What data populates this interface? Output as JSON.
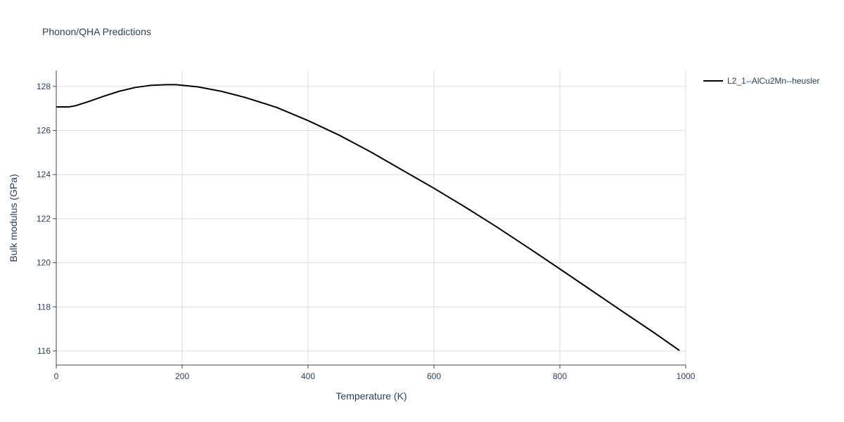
{
  "chart_data": {
    "type": "line",
    "title": "Phonon/QHA Predictions",
    "x_label": "Temperature (K)",
    "y_label": "Bulk modulus (GPa)",
    "x": [
      0,
      20,
      30,
      50,
      75,
      100,
      125,
      150,
      175,
      190,
      225,
      262,
      300,
      350,
      400,
      450,
      500,
      550,
      600,
      650,
      700,
      750,
      800,
      850,
      900,
      950,
      990
    ],
    "series": [
      {
        "name": "L2_1--AlCu2Mn--heusler",
        "color": "#000000",
        "values": [
          127.07,
          127.07,
          127.12,
          127.3,
          127.55,
          127.78,
          127.95,
          128.05,
          128.08,
          128.08,
          127.98,
          127.78,
          127.5,
          127.05,
          126.45,
          125.78,
          125.02,
          124.2,
          123.38,
          122.52,
          121.62,
          120.68,
          119.72,
          118.75,
          117.78,
          116.82,
          116.02
        ]
      }
    ],
    "xlim": [
      0,
      1000
    ],
    "xticks": [
      0,
      200,
      400,
      600,
      800,
      1000
    ],
    "ylim": [
      115.36,
      128.73
    ],
    "yticks": [
      116,
      118,
      120,
      122,
      124,
      126,
      128
    ],
    "grid": true,
    "legend": "right"
  }
}
